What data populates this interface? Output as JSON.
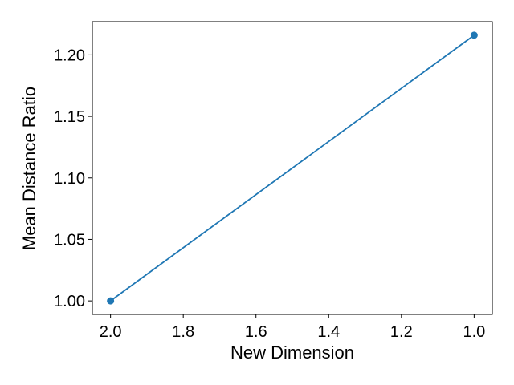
{
  "chart_data": {
    "type": "line",
    "title": "",
    "xlabel": "New Dimension",
    "ylabel": "Mean Distance Ratio",
    "x_inverted": true,
    "xlim": [
      2.05,
      0.95
    ],
    "ylim": [
      0.989,
      1.227
    ],
    "x_ticks": [
      2.0,
      1.8,
      1.6,
      1.4,
      1.2,
      1.0
    ],
    "x_tick_labels": [
      "2.0",
      "1.8",
      "1.6",
      "1.4",
      "1.2",
      "1.0"
    ],
    "y_ticks": [
      1.0,
      1.05,
      1.1,
      1.15,
      1.2
    ],
    "y_tick_labels": [
      "1.00",
      "1.05",
      "1.10",
      "1.15",
      "1.20"
    ],
    "grid": false,
    "series": [
      {
        "color": "#1f77b4",
        "marker": "circle",
        "x": [
          2.0,
          1.0
        ],
        "y": [
          1.0,
          1.216
        ]
      }
    ]
  }
}
